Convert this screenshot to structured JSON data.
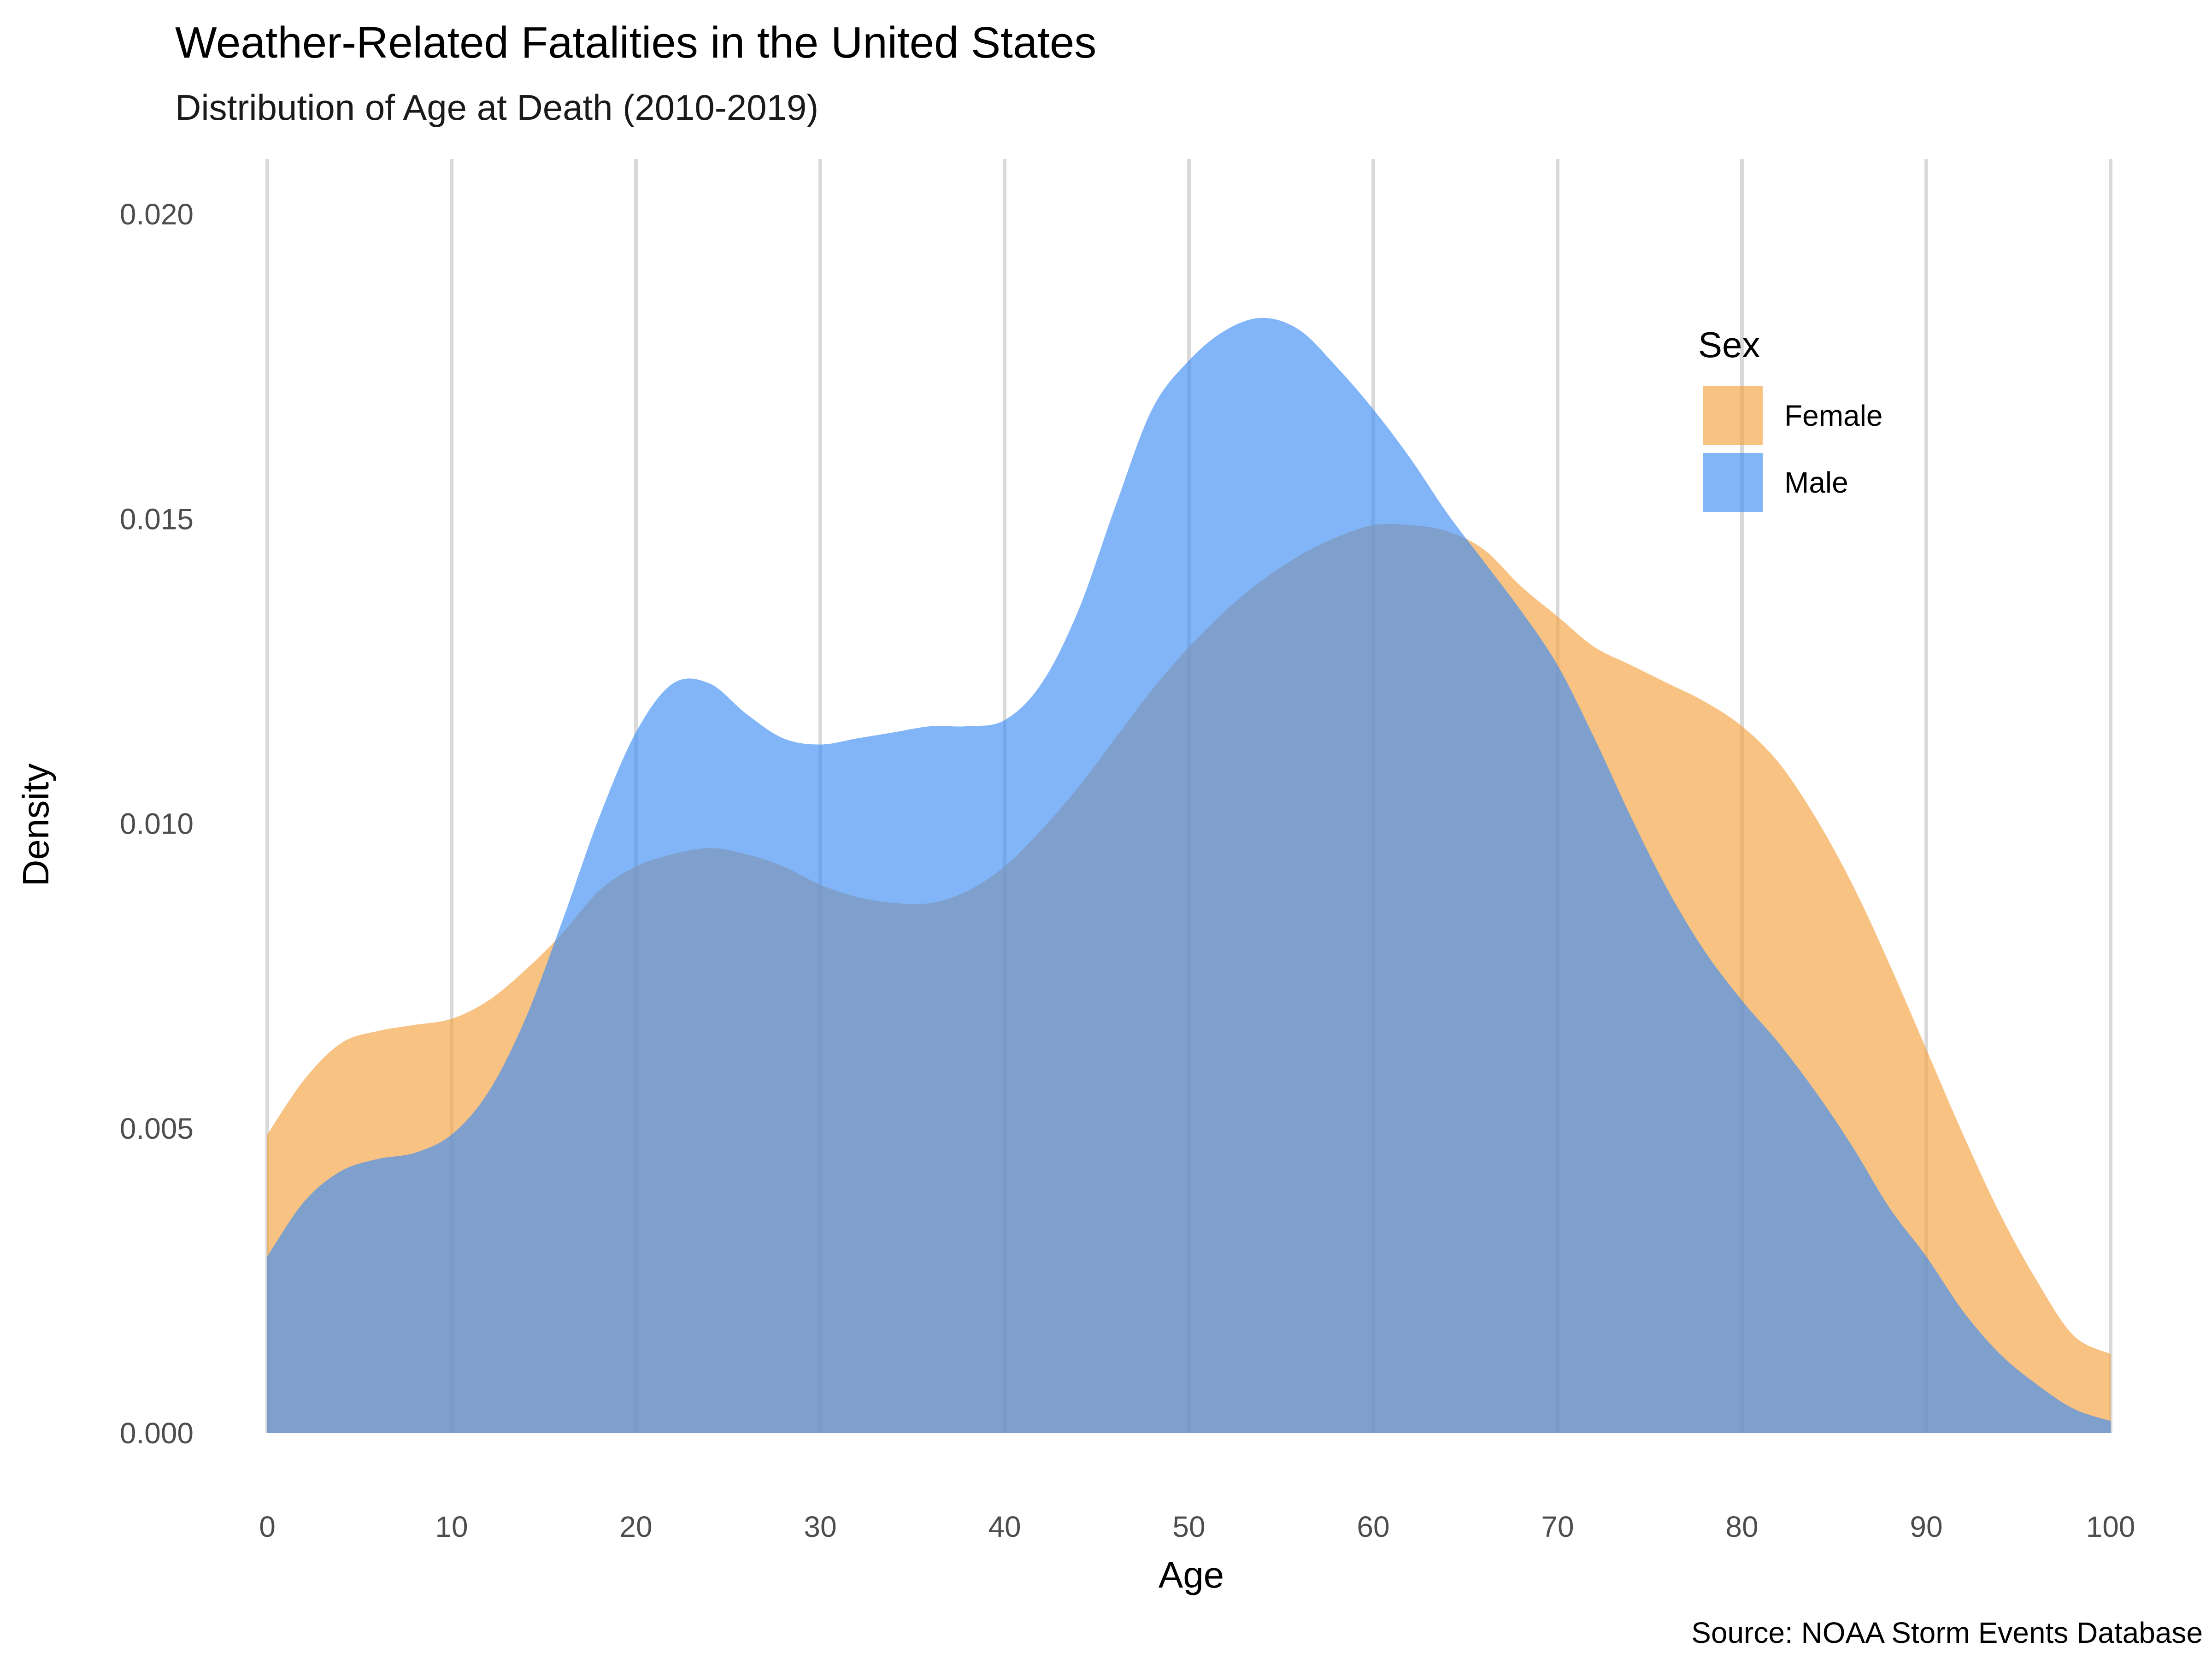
{
  "chart_data": {
    "type": "area",
    "title": "Weather-Related Fatalities in the United States",
    "subtitle": "Distribution of Age at Death (2010-2019)",
    "xlabel": "Age",
    "ylabel": "Density",
    "caption": "Source: NOAA Storm Events Database",
    "xlim": [
      0,
      100
    ],
    "ylim": [
      0,
      0.02
    ],
    "x_ticks": [
      "0",
      "10",
      "20",
      "30",
      "40",
      "50",
      "60",
      "70",
      "80",
      "90",
      "100"
    ],
    "y_ticks": [
      "0.000",
      "0.005",
      "0.010",
      "0.015",
      "0.020"
    ],
    "grid": "vertical major lines",
    "legend": {
      "title": "Sex",
      "position": "top-right"
    },
    "series": [
      {
        "name": "Female",
        "color": "#f4a13f",
        "points": [
          [
            0,
            0.0049
          ],
          [
            2,
            0.0058
          ],
          [
            4,
            0.0064
          ],
          [
            6,
            0.0066
          ],
          [
            8,
            0.0067
          ],
          [
            10,
            0.0068
          ],
          [
            12,
            0.0071
          ],
          [
            14,
            0.0076
          ],
          [
            16,
            0.0082
          ],
          [
            18,
            0.0089
          ],
          [
            20,
            0.0093
          ],
          [
            22,
            0.0095
          ],
          [
            24,
            0.0096
          ],
          [
            26,
            0.0095
          ],
          [
            28,
            0.0093
          ],
          [
            30,
            0.009
          ],
          [
            32,
            0.0088
          ],
          [
            34,
            0.0087
          ],
          [
            36,
            0.0087
          ],
          [
            38,
            0.0089
          ],
          [
            40,
            0.0093
          ],
          [
            42,
            0.0099
          ],
          [
            44,
            0.0106
          ],
          [
            46,
            0.0114
          ],
          [
            48,
            0.0122
          ],
          [
            50,
            0.0129
          ],
          [
            52,
            0.0135
          ],
          [
            54,
            0.014
          ],
          [
            56,
            0.0144
          ],
          [
            58,
            0.0147
          ],
          [
            60,
            0.0149
          ],
          [
            62,
            0.0149
          ],
          [
            64,
            0.0148
          ],
          [
            66,
            0.0145
          ],
          [
            68,
            0.0139
          ],
          [
            70,
            0.0134
          ],
          [
            72,
            0.0129
          ],
          [
            74,
            0.0126
          ],
          [
            76,
            0.0123
          ],
          [
            78,
            0.012
          ],
          [
            80,
            0.0116
          ],
          [
            82,
            0.011
          ],
          [
            84,
            0.0101
          ],
          [
            86,
            0.009
          ],
          [
            88,
            0.0077
          ],
          [
            90,
            0.0063
          ],
          [
            92,
            0.0049
          ],
          [
            94,
            0.0036
          ],
          [
            96,
            0.0025
          ],
          [
            98,
            0.0016
          ],
          [
            100,
            0.0013
          ]
        ]
      },
      {
        "name": "Male",
        "color": "#3d8ef4",
        "points": [
          [
            0,
            0.0029
          ],
          [
            2,
            0.0038
          ],
          [
            4,
            0.0043
          ],
          [
            6,
            0.0045
          ],
          [
            8,
            0.0046
          ],
          [
            10,
            0.0049
          ],
          [
            12,
            0.0056
          ],
          [
            14,
            0.0068
          ],
          [
            16,
            0.0084
          ],
          [
            18,
            0.0101
          ],
          [
            20,
            0.0115
          ],
          [
            22,
            0.0123
          ],
          [
            24,
            0.0123
          ],
          [
            26,
            0.0118
          ],
          [
            28,
            0.0114
          ],
          [
            30,
            0.0113
          ],
          [
            32,
            0.0114
          ],
          [
            34,
            0.0115
          ],
          [
            36,
            0.0116
          ],
          [
            38,
            0.0116
          ],
          [
            40,
            0.0117
          ],
          [
            42,
            0.0123
          ],
          [
            44,
            0.0135
          ],
          [
            46,
            0.0152
          ],
          [
            48,
            0.0168
          ],
          [
            50,
            0.0176
          ],
          [
            52,
            0.0181
          ],
          [
            54,
            0.0183
          ],
          [
            56,
            0.0181
          ],
          [
            58,
            0.0175
          ],
          [
            60,
            0.0168
          ],
          [
            62,
            0.016
          ],
          [
            64,
            0.0151
          ],
          [
            66,
            0.0143
          ],
          [
            68,
            0.0135
          ],
          [
            70,
            0.0126
          ],
          [
            72,
            0.0114
          ],
          [
            74,
            0.0101
          ],
          [
            76,
            0.0089
          ],
          [
            78,
            0.0079
          ],
          [
            80,
            0.0071
          ],
          [
            82,
            0.0064
          ],
          [
            84,
            0.0056
          ],
          [
            86,
            0.0047
          ],
          [
            88,
            0.0037
          ],
          [
            90,
            0.0029
          ],
          [
            92,
            0.002
          ],
          [
            94,
            0.0013
          ],
          [
            96,
            0.0008
          ],
          [
            98,
            0.0004
          ],
          [
            100,
            0.0002
          ]
        ]
      }
    ]
  }
}
